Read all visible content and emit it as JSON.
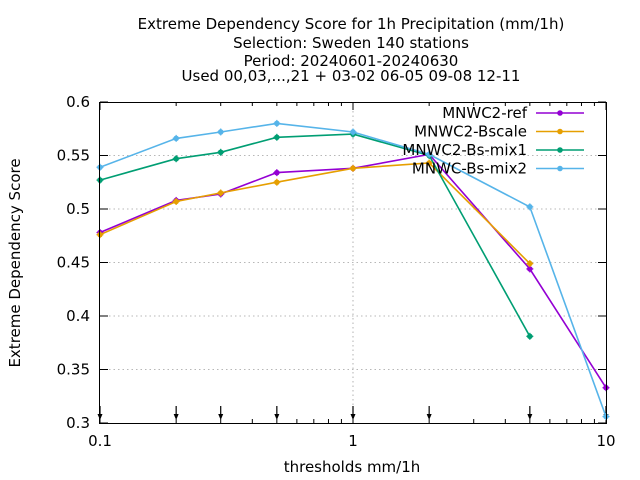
{
  "chart_data": {
    "type": "line",
    "title_lines": [
      "Extreme Dependency Score  for 1h Precipitation (mm/1h)",
      "Selection: Sweden    140 stations",
      "Period: 20240601-20240630",
      "Used 00,03,...,21 + 03-02 06-05 09-08 12-11"
    ],
    "xlabel": "thresholds mm/1h",
    "ylabel": "Extreme Dependency Score",
    "x_scale": "log",
    "xlim": [
      0.1,
      10
    ],
    "ylim": [
      0.3,
      0.6
    ],
    "x_ticks": [
      0.1,
      1,
      10
    ],
    "x_tick_labels": [
      "0.1",
      "1",
      "10"
    ],
    "y_ticks": [
      0.3,
      0.35,
      0.4,
      0.45,
      0.5,
      0.55,
      0.6
    ],
    "y_tick_labels": [
      "0.3",
      "0.35",
      "0.4",
      "0.45",
      "0.5",
      "0.55",
      "0.6"
    ],
    "grid": true,
    "legend_position": "top-right",
    "threshold_markers": [
      0.1,
      0.2,
      0.3,
      0.5,
      1,
      2,
      5,
      10
    ],
    "series": [
      {
        "name": "MNWC2-ref",
        "color": "#9400d3",
        "x": [
          0.1,
          0.2,
          0.3,
          0.5,
          1,
          2,
          5,
          10
        ],
        "values": [
          0.478,
          0.508,
          0.514,
          0.534,
          0.538,
          0.551,
          0.444,
          0.333
        ]
      },
      {
        "name": "MNWC2-Bscale",
        "color": "#e69f00",
        "x": [
          0.1,
          0.2,
          0.3,
          0.5,
          1,
          2,
          5
        ],
        "values": [
          0.476,
          0.507,
          0.515,
          0.525,
          0.538,
          0.543,
          0.449
        ]
      },
      {
        "name": "MNWC2-Bs-mix1",
        "color": "#009e73",
        "x": [
          0.1,
          0.2,
          0.3,
          0.5,
          1,
          2,
          5
        ],
        "values": [
          0.527,
          0.547,
          0.553,
          0.567,
          0.57,
          0.55,
          0.381
        ]
      },
      {
        "name": "MNWC-Bs-mix2",
        "color": "#56b4e9",
        "x": [
          0.1,
          0.2,
          0.3,
          0.5,
          1,
          2,
          5,
          10
        ],
        "values": [
          0.539,
          0.566,
          0.572,
          0.58,
          0.572,
          0.551,
          0.502,
          0.306
        ]
      }
    ]
  }
}
